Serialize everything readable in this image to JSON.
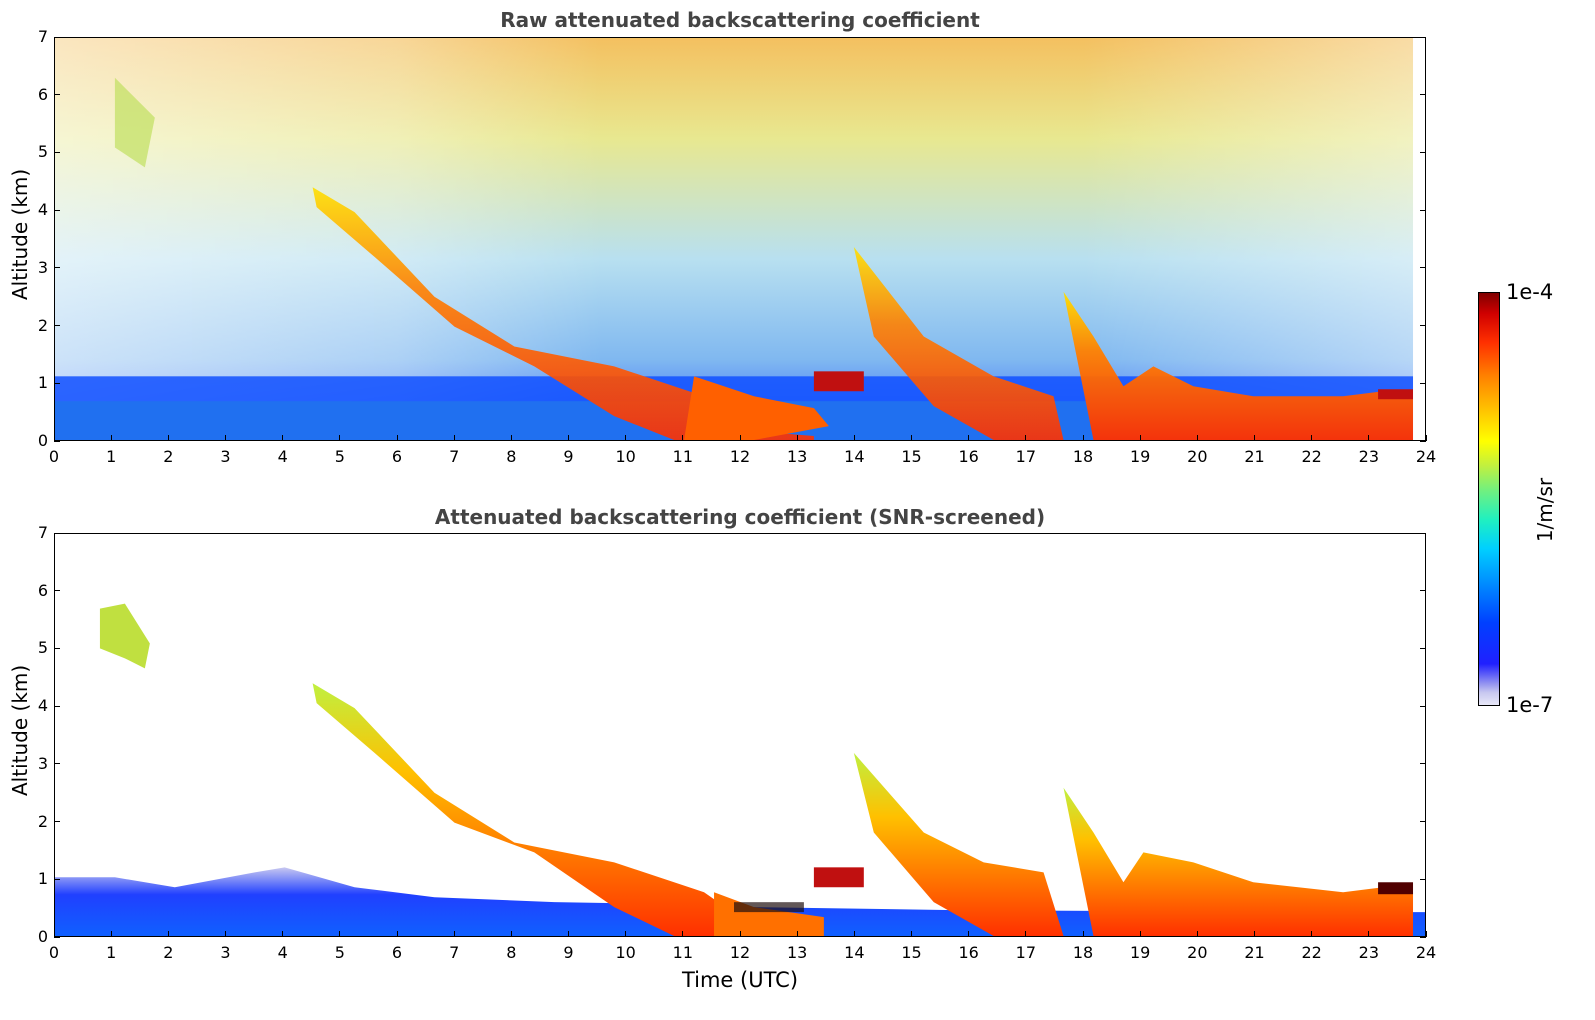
{
  "panels": [
    {
      "title": "Raw attenuated backscattering coefficient",
      "ylabel": "Altitude (km)"
    },
    {
      "title": "Attenuated backscattering coefficient (SNR-screened)",
      "ylabel": "Altitude (km)"
    }
  ],
  "xlabel": "Time (UTC)",
  "colorbar": {
    "max_label": "1e-4",
    "min_label": "1e-7",
    "unit": "1/m/sr"
  },
  "chart_data": [
    {
      "type": "heatmap",
      "title": "Raw attenuated backscattering coefficient",
      "xlabel": "",
      "ylabel": "Altitude (km)",
      "xlim": [
        0,
        24
      ],
      "ylim": [
        0,
        7
      ],
      "xticks": [
        0,
        1,
        2,
        3,
        4,
        5,
        6,
        7,
        8,
        9,
        10,
        11,
        12,
        13,
        14,
        15,
        16,
        17,
        18,
        19,
        20,
        21,
        22,
        23,
        24
      ],
      "yticks": [
        0,
        1,
        2,
        3,
        4,
        5,
        6,
        7
      ],
      "colorscale": {
        "min": "1e-7",
        "max": "1e-4",
        "unit": "1/m/sr",
        "scale": "log",
        "colormap": "jet"
      }
    },
    {
      "type": "heatmap",
      "title": "Attenuated backscattering coefficient (SNR-screened)",
      "xlabel": "Time (UTC)",
      "ylabel": "Altitude (km)",
      "xlim": [
        0,
        24
      ],
      "ylim": [
        0,
        7
      ],
      "xticks": [
        0,
        1,
        2,
        3,
        4,
        5,
        6,
        7,
        8,
        9,
        10,
        11,
        12,
        13,
        14,
        15,
        16,
        17,
        18,
        19,
        20,
        21,
        22,
        23,
        24
      ],
      "yticks": [
        0,
        1,
        2,
        3,
        4,
        5,
        6,
        7
      ],
      "colorscale": {
        "min": "1e-7",
        "max": "1e-4",
        "unit": "1/m/sr",
        "scale": "log",
        "colormap": "jet"
      }
    }
  ]
}
